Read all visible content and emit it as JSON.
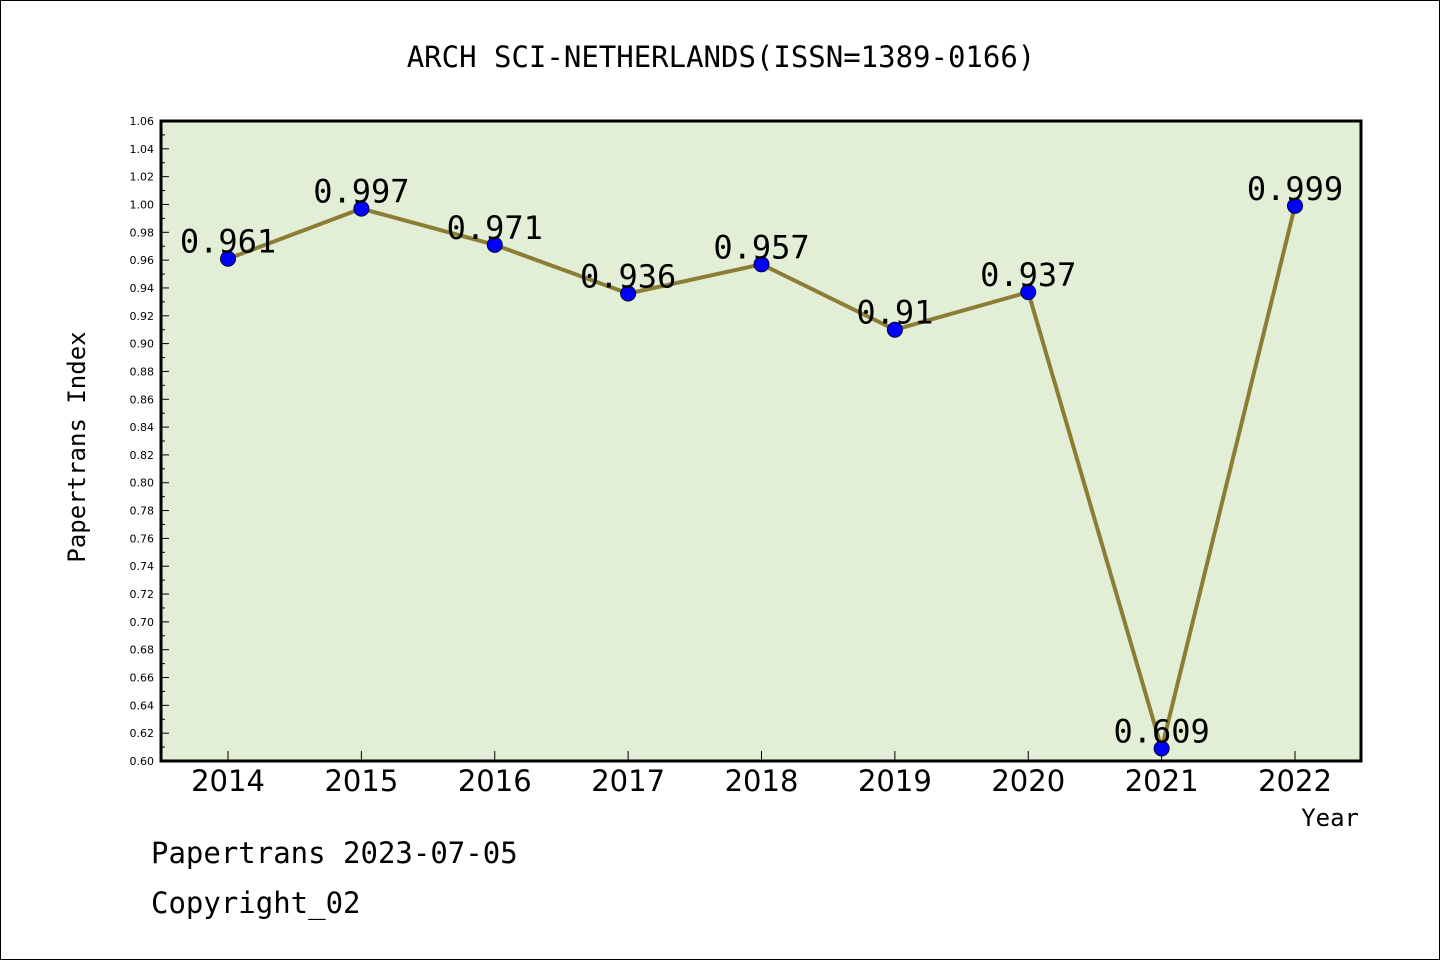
{
  "footer": {
    "date_line": "Papertrans 2023-07-05",
    "copyright_line": "Copyright_02"
  },
  "colors": {
    "plot_background": "#e2efd6",
    "line": "#8b7d35",
    "marker": "#0000ff"
  },
  "chart_data": {
    "type": "line",
    "title": "ARCH SCI-NETHERLANDS(ISSN=1389-0166)",
    "xlabel": "Year",
    "ylabel": "Papertrans Index",
    "categories": [
      "2014",
      "2015",
      "2016",
      "2017",
      "2018",
      "2019",
      "2020",
      "2021",
      "2022"
    ],
    "series": [
      {
        "values": [
          0.961,
          0.997,
          0.971,
          0.936,
          0.957,
          0.91,
          0.937,
          0.609,
          0.999
        ],
        "labels": [
          "0.961",
          "0.997",
          "0.971",
          "0.936",
          "0.957",
          "0.91",
          "0.937",
          "0.609",
          "0.999"
        ]
      }
    ],
    "ylim": [
      0.6,
      1.06
    ],
    "yticks": [
      "0.60",
      "0.62",
      "0.64",
      "0.66",
      "0.68",
      "0.70",
      "0.72",
      "0.74",
      "0.76",
      "0.78",
      "0.80",
      "0.82",
      "0.84",
      "0.86",
      "0.88",
      "0.90",
      "0.92",
      "0.94",
      "0.96",
      "0.98",
      "1.00",
      "1.02",
      "1.04",
      "1.06"
    ],
    "grid": false,
    "legend": "none"
  }
}
